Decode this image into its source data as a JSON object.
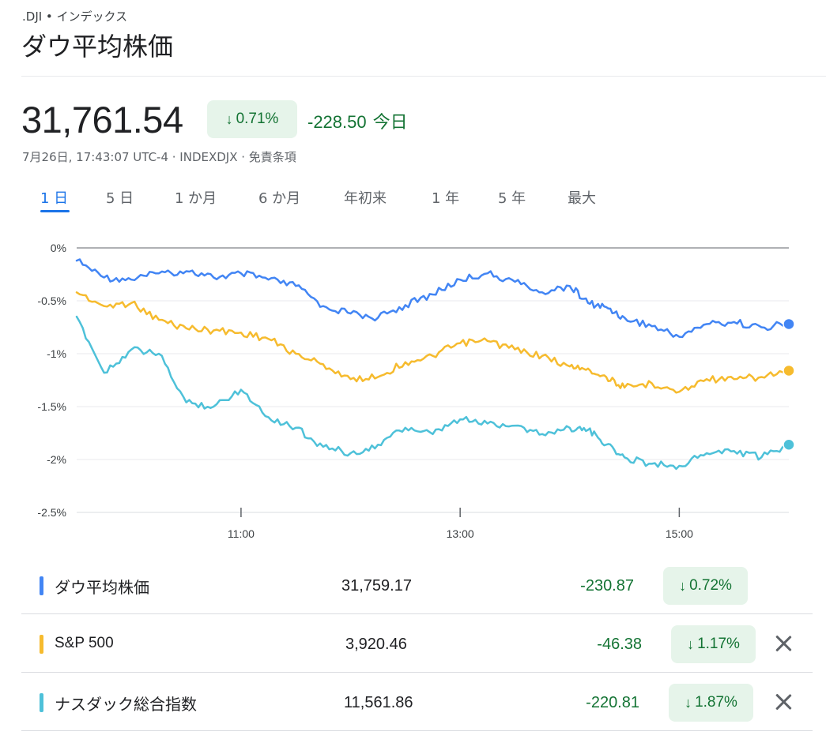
{
  "header": {
    "eyebrow": ".DJI • インデックス",
    "title": "ダウ平均株価"
  },
  "quote": {
    "price": "31,761.54",
    "percent_change": "0.71%",
    "change": "-228.50",
    "period": "今日",
    "meta": "7月26日, 17:43:07 UTC-4 · INDEXDJX · 免責条項"
  },
  "tabs": [
    {
      "label": "1 日",
      "active": true
    },
    {
      "label": "5 日",
      "active": false
    },
    {
      "label": "1 か月",
      "active": false
    },
    {
      "label": "6 か月",
      "active": false
    },
    {
      "label": "年初来",
      "active": false
    },
    {
      "label": "1 年",
      "active": false
    },
    {
      "label": "5 年",
      "active": false
    },
    {
      "label": "最大",
      "active": false
    }
  ],
  "chart_data": {
    "type": "line",
    "x_unit": "time",
    "x_range": [
      "09:30",
      "16:00"
    ],
    "ylim": [
      -2.5,
      0
    ],
    "y_ticks": [
      {
        "value": 0,
        "label": "0%"
      },
      {
        "value": -0.5,
        "label": "-0.5%"
      },
      {
        "value": -1,
        "label": "-1%"
      },
      {
        "value": -1.5,
        "label": "-1.5%"
      },
      {
        "value": -2,
        "label": "-2%"
      },
      {
        "value": -2.5,
        "label": "-2.5%"
      }
    ],
    "x_ticks": [
      "11:00",
      "13:00",
      "15:00"
    ],
    "grid": true,
    "series": [
      {
        "name": "ダウ平均株価",
        "color": "#4285f4",
        "x": [
          "09:30",
          "09:45",
          "10:00",
          "10:15",
          "10:30",
          "10:45",
          "11:00",
          "11:15",
          "11:30",
          "11:45",
          "12:00",
          "12:15",
          "12:30",
          "12:45",
          "13:00",
          "13:15",
          "13:30",
          "13:45",
          "14:00",
          "14:10",
          "14:20",
          "14:30",
          "14:45",
          "15:00",
          "15:15",
          "15:30",
          "15:45",
          "16:00"
        ],
        "values": [
          -0.12,
          -0.28,
          -0.3,
          -0.24,
          -0.22,
          -0.28,
          -0.24,
          -0.3,
          -0.36,
          -0.55,
          -0.62,
          -0.66,
          -0.54,
          -0.44,
          -0.3,
          -0.24,
          -0.32,
          -0.42,
          -0.36,
          -0.52,
          -0.56,
          -0.66,
          -0.74,
          -0.84,
          -0.72,
          -0.7,
          -0.75,
          -0.72
        ]
      },
      {
        "name": "S&P 500",
        "color": "#f6bb2e",
        "x": [
          "09:30",
          "09:45",
          "10:00",
          "10:15",
          "10:30",
          "10:45",
          "11:00",
          "11:15",
          "11:30",
          "11:45",
          "12:00",
          "12:15",
          "12:30",
          "12:45",
          "13:00",
          "13:15",
          "13:30",
          "13:45",
          "14:00",
          "14:10",
          "14:20",
          "14:30",
          "14:45",
          "15:00",
          "15:15",
          "15:30",
          "15:45",
          "16:00"
        ],
        "values": [
          -0.42,
          -0.55,
          -0.52,
          -0.68,
          -0.76,
          -0.78,
          -0.8,
          -0.86,
          -1.0,
          -1.1,
          -1.24,
          -1.22,
          -1.08,
          -1.02,
          -0.9,
          -0.88,
          -0.96,
          -1.02,
          -1.12,
          -1.14,
          -1.22,
          -1.32,
          -1.28,
          -1.36,
          -1.24,
          -1.24,
          -1.22,
          -1.16
        ]
      },
      {
        "name": "ナスダック総合指数",
        "color": "#4ec1d9",
        "x": [
          "09:30",
          "09:45",
          "10:00",
          "10:15",
          "10:30",
          "10:45",
          "11:00",
          "11:15",
          "11:30",
          "11:45",
          "12:00",
          "12:15",
          "12:30",
          "12:45",
          "13:00",
          "13:15",
          "13:30",
          "13:45",
          "14:00",
          "14:10",
          "14:20",
          "14:30",
          "14:45",
          "15:00",
          "15:15",
          "15:30",
          "15:45",
          "16:00"
        ],
        "values": [
          -0.65,
          -1.18,
          -0.96,
          -1.0,
          -1.46,
          -1.5,
          -1.34,
          -1.6,
          -1.7,
          -1.88,
          -1.94,
          -1.86,
          -1.7,
          -1.76,
          -1.62,
          -1.66,
          -1.68,
          -1.76,
          -1.7,
          -1.72,
          -1.86,
          -1.98,
          -2.04,
          -2.06,
          -1.94,
          -1.92,
          -1.98,
          -1.86
        ]
      }
    ]
  },
  "comparisons": [
    {
      "name": "ダウ平均株価",
      "value": "31,759.17",
      "change": "-230.87",
      "percent": "0.72%",
      "color": "#4285f4",
      "removable": false
    },
    {
      "name": "S&P 500",
      "value": "3,920.46",
      "change": "-46.38",
      "percent": "1.17%",
      "color": "#f6bb2e",
      "removable": true
    },
    {
      "name": "ナスダック総合指数",
      "value": "11,561.86",
      "change": "-220.81",
      "percent": "1.87%",
      "color": "#4ec1d9",
      "removable": true
    }
  ]
}
